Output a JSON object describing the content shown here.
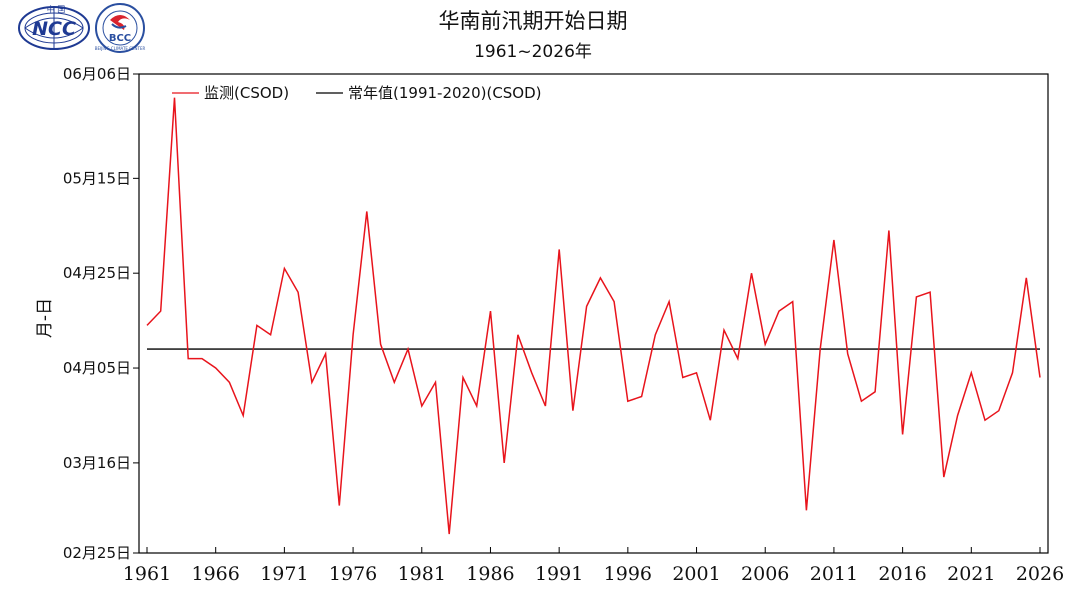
{
  "logos": {
    "ncc": {
      "text": "NCC",
      "top_text": "中 国"
    },
    "bcc": {
      "text": "BCC",
      "ring_text": "BEIJING CLIMATE CENTER"
    }
  },
  "chart_data": {
    "type": "line",
    "title": "华南前汛期开始日期",
    "subtitle": "1961~2026年",
    "ylabel": "月-日",
    "xlabel": "",
    "grid": false,
    "legend_placement": "top-left",
    "x_ticks": [
      1961,
      1966,
      1971,
      1976,
      1981,
      1986,
      1991,
      1996,
      2001,
      2006,
      2011,
      2016,
      2021,
      2026
    ],
    "y_ticks": [
      {
        "date": "02-25",
        "label": "02月25日"
      },
      {
        "date": "03-16",
        "label": "03月16日"
      },
      {
        "date": "04-05",
        "label": "04月05日"
      },
      {
        "date": "04-25",
        "label": "04月25日"
      },
      {
        "date": "05-15",
        "label": "05月15日"
      },
      {
        "date": "06-06",
        "label": "06月06日"
      }
    ],
    "xlim": [
      1961,
      2026
    ],
    "ylim": [
      "02-25",
      "06-06"
    ],
    "series": [
      {
        "name": "监测(CSOD)",
        "color": "#e8141c",
        "x": [
          1961,
          1962,
          1963,
          1964,
          1965,
          1966,
          1967,
          1968,
          1969,
          1970,
          1971,
          1972,
          1973,
          1974,
          1975,
          1976,
          1977,
          1978,
          1979,
          1980,
          1981,
          1982,
          1983,
          1984,
          1985,
          1986,
          1987,
          1988,
          1989,
          1990,
          1991,
          1992,
          1993,
          1994,
          1995,
          1996,
          1997,
          1998,
          1999,
          2000,
          2001,
          2002,
          2003,
          2004,
          2005,
          2006,
          2007,
          2008,
          2009,
          2010,
          2011,
          2012,
          2013,
          2014,
          2015,
          2016,
          2017,
          2018,
          2019,
          2020,
          2021,
          2022,
          2023,
          2024,
          2025,
          2026
        ],
        "y": [
          "04-14",
          "04-17",
          "06-01",
          "04-07",
          "04-07",
          "04-05",
          "04-02",
          "03-26",
          "04-14",
          "04-12",
          "04-26",
          "04-21",
          "04-02",
          "04-08",
          "03-07",
          "04-12",
          "05-08",
          "04-10",
          "04-02",
          "04-09",
          "03-28",
          "04-02",
          "02-29",
          "04-03",
          "03-28",
          "04-17",
          "03-16",
          "04-12",
          "04-04",
          "03-28",
          "04-30",
          "03-27",
          "04-18",
          "04-24",
          "04-19",
          "03-29",
          "03-30",
          "04-12",
          "04-19",
          "04-03",
          "04-04",
          "03-25",
          "04-13",
          "04-07",
          "04-25",
          "04-10",
          "04-17",
          "04-19",
          "03-06",
          "04-09",
          "05-02",
          "04-08",
          "03-29",
          "03-31",
          "05-04",
          "03-22",
          "04-20",
          "04-21",
          "03-13",
          "03-26",
          "04-04",
          "03-25",
          "03-27",
          "04-04",
          "04-24",
          "04-03"
        ]
      },
      {
        "name": "常年值(1991-2020)(CSOD)",
        "color": "#000000",
        "x": [
          1961,
          2026
        ],
        "y": [
          "04-09",
          "04-09"
        ]
      }
    ]
  }
}
